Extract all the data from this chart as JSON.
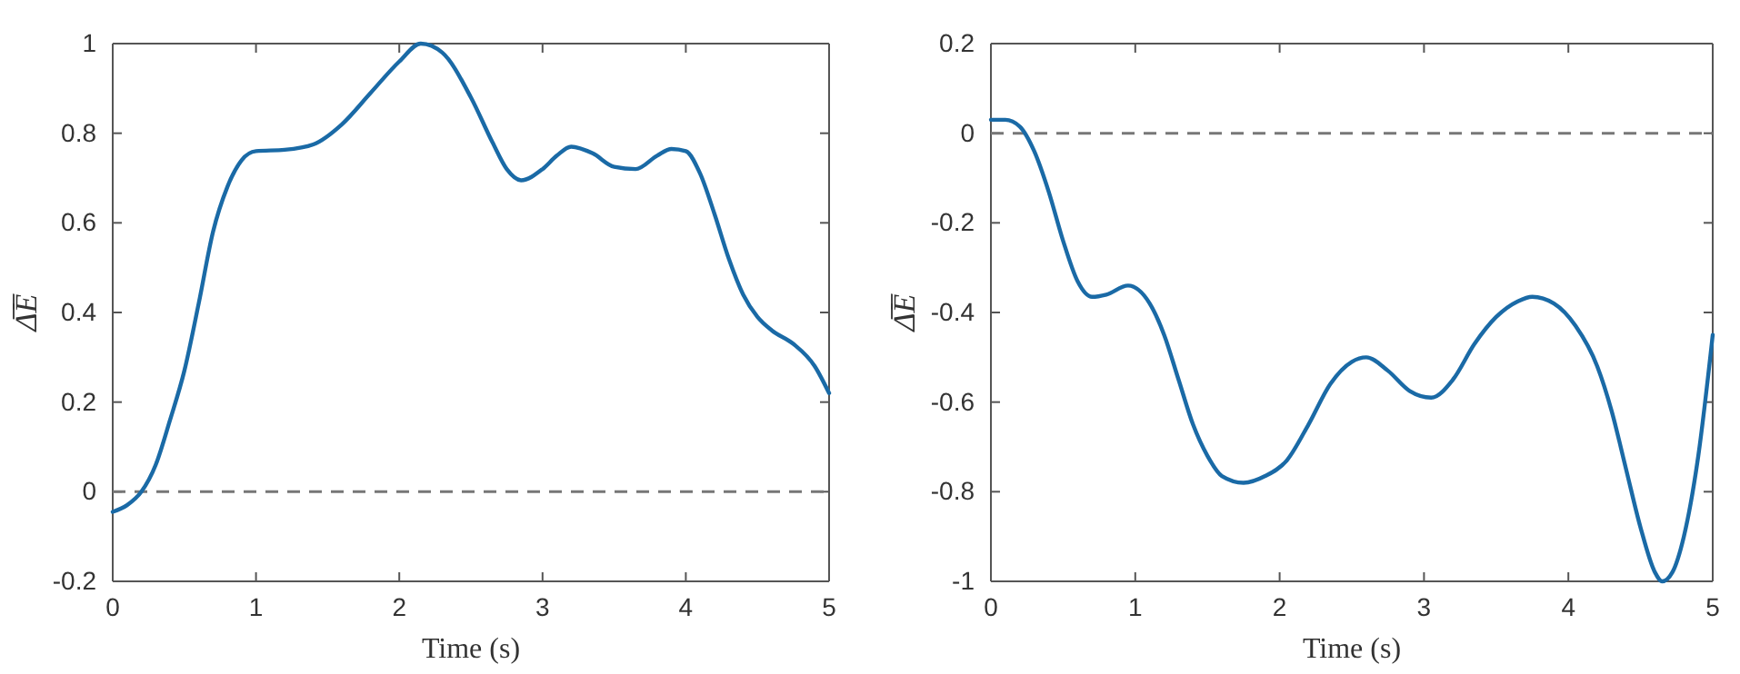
{
  "chart_data": [
    {
      "type": "line",
      "xlabel": "Time (s)",
      "ylabel": "Δ̅E̅",
      "xlim": [
        0,
        5
      ],
      "ylim": [
        -0.2,
        1
      ],
      "xticks": [
        0,
        1,
        2,
        3,
        4,
        5
      ],
      "yticks": [
        -0.2,
        0,
        0.2,
        0.4,
        0.6,
        0.8,
        1
      ],
      "grid": false,
      "ref_lines": [
        {
          "axis": "y",
          "value": 0,
          "color": "#777777",
          "line_style": "dashed"
        }
      ],
      "series": [
        {
          "color": "#1a6aa6",
          "x": [
            0,
            0.1,
            0.2,
            0.3,
            0.4,
            0.5,
            0.6,
            0.7,
            0.8,
            0.9,
            1.0,
            1.2,
            1.4,
            1.6,
            1.8,
            2.0,
            2.15,
            2.3,
            2.5,
            2.65,
            2.75,
            2.85,
            3.0,
            3.1,
            3.2,
            3.35,
            3.5,
            3.65,
            3.8,
            3.9,
            4.0,
            4.1,
            4.2,
            4.3,
            4.4,
            4.5,
            4.6,
            4.75,
            4.9,
            5.0
          ],
          "values": [
            -0.045,
            -0.03,
            0.0,
            0.06,
            0.16,
            0.27,
            0.42,
            0.58,
            0.68,
            0.74,
            0.76,
            0.763,
            0.775,
            0.82,
            0.89,
            0.96,
            1.0,
            0.98,
            0.88,
            0.78,
            0.72,
            0.695,
            0.72,
            0.75,
            0.77,
            0.755,
            0.725,
            0.72,
            0.75,
            0.765,
            0.76,
            0.71,
            0.62,
            0.52,
            0.44,
            0.39,
            0.36,
            0.33,
            0.28,
            0.22
          ]
        }
      ]
    },
    {
      "type": "line",
      "xlabel": "Time (s)",
      "ylabel": "Δ̅E̅",
      "xlim": [
        0,
        5
      ],
      "ylim": [
        -1,
        0.2
      ],
      "xticks": [
        0,
        1,
        2,
        3,
        4,
        5
      ],
      "yticks": [
        -1,
        -0.8,
        -0.6,
        -0.4,
        -0.2,
        0,
        0.2
      ],
      "grid": false,
      "ref_lines": [
        {
          "axis": "y",
          "value": 0,
          "color": "#777777",
          "line_style": "dashed"
        }
      ],
      "series": [
        {
          "color": "#1a6aa6",
          "x": [
            0,
            0.1,
            0.2,
            0.3,
            0.4,
            0.5,
            0.6,
            0.7,
            0.8,
            0.95,
            1.1,
            1.2,
            1.3,
            1.4,
            1.5,
            1.6,
            1.75,
            1.9,
            2.05,
            2.2,
            2.35,
            2.5,
            2.6,
            2.75,
            2.9,
            3.05,
            3.2,
            3.35,
            3.5,
            3.65,
            3.75,
            3.9,
            4.05,
            4.2,
            4.3,
            4.4,
            4.5,
            4.6,
            4.65,
            4.72,
            4.8,
            4.9,
            5.0
          ],
          "values": [
            0.03,
            0.03,
            0.015,
            -0.04,
            -0.13,
            -0.24,
            -0.33,
            -0.365,
            -0.36,
            -0.34,
            -0.38,
            -0.45,
            -0.55,
            -0.65,
            -0.72,
            -0.765,
            -0.78,
            -0.765,
            -0.73,
            -0.65,
            -0.56,
            -0.51,
            -0.5,
            -0.53,
            -0.575,
            -0.59,
            -0.55,
            -0.47,
            -0.41,
            -0.375,
            -0.365,
            -0.38,
            -0.43,
            -0.52,
            -0.62,
            -0.75,
            -0.88,
            -0.98,
            -1.0,
            -0.98,
            -0.9,
            -0.72,
            -0.45
          ]
        }
      ]
    }
  ]
}
